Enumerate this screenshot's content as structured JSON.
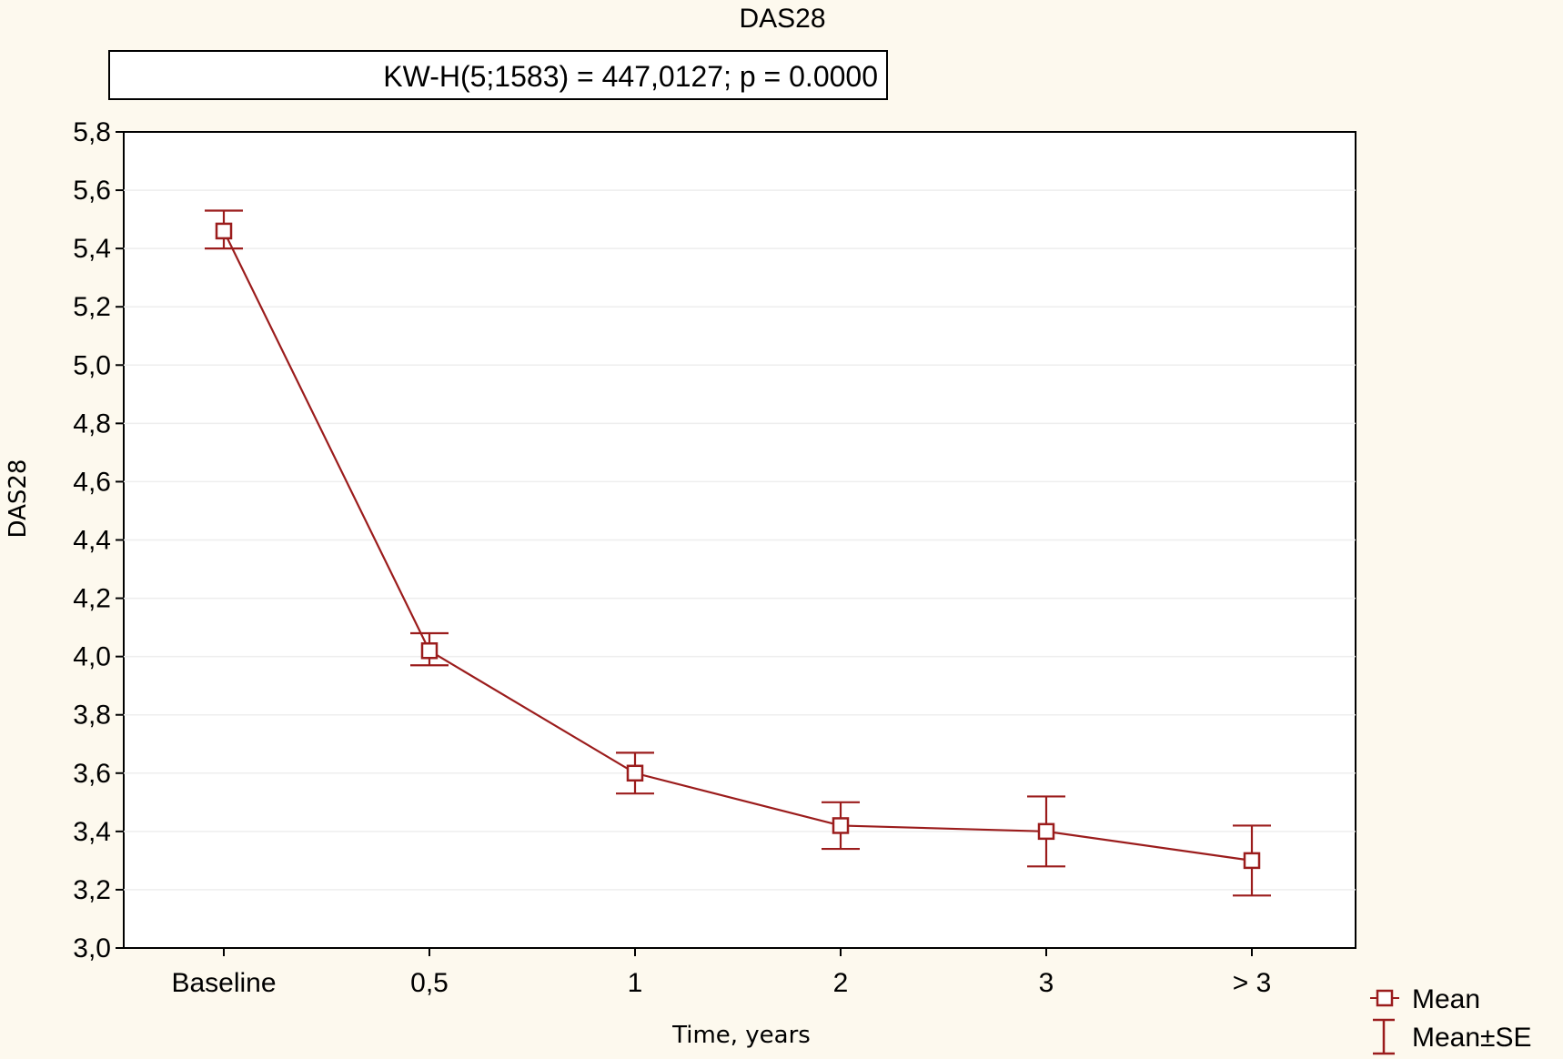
{
  "colors": {
    "page_background": "#fdf9ee",
    "plot_background": "#ffffff",
    "series": "#9b1c1c",
    "grid": "#eeeeee"
  },
  "chart_data": {
    "type": "line",
    "title": "DAS28",
    "stat_box": "KW-H(5;1583) = 447,0127; p = 0.0000",
    "xlabel": "Time, years",
    "ylabel": "DAS28",
    "categories": [
      "Baseline",
      "0,5",
      "1",
      "2",
      "3",
      "> 3"
    ],
    "ylim": [
      3.0,
      5.8
    ],
    "yticks": [
      "3,0",
      "3,2",
      "3,4",
      "3,6",
      "3,8",
      "4,0",
      "4,2",
      "4,4",
      "4,6",
      "4,8",
      "5,0",
      "5,2",
      "5,4",
      "5,6",
      "5,8"
    ],
    "grid": true,
    "legend_position": "bottom-right",
    "series": [
      {
        "name": "Mean",
        "values": [
          5.46,
          4.02,
          3.6,
          3.42,
          3.4,
          3.3
        ],
        "error_low": [
          5.4,
          3.97,
          3.53,
          3.34,
          3.28,
          3.18
        ],
        "error_high": [
          5.53,
          4.08,
          3.67,
          3.5,
          3.52,
          3.42
        ]
      }
    ],
    "legend": [
      {
        "label": "Mean",
        "marker": "square"
      },
      {
        "label": "Mean±SE",
        "marker": "errorbar"
      }
    ]
  }
}
